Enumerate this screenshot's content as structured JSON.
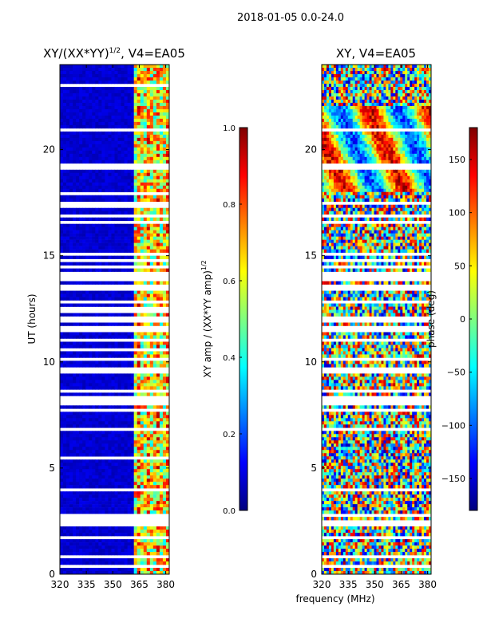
{
  "suptitle": "2018-01-05 0.0-24.0",
  "xlabel_shared": "frequency (MHz)",
  "chart_data": [
    {
      "type": "heatmap",
      "title": "XY/(XX*YY)",
      "title_superscript": "1/2",
      "title_suffix": ", V4=EA05",
      "ylabel": "UT (hours)",
      "xlim": [
        320,
        382
      ],
      "ylim": [
        0,
        24
      ],
      "xticks": [
        320,
        335,
        350,
        365,
        380
      ],
      "yticks": [
        0,
        5,
        10,
        15,
        20
      ],
      "colorbar": {
        "label": "XY amp / (XX*YY amp)",
        "label_superscript": "1/2",
        "range": [
          0.0,
          1.0
        ],
        "ticks": [
          "0.0",
          "0.2",
          "0.4",
          "0.6",
          "0.8",
          "1.0"
        ],
        "colormap": "jet"
      },
      "data_description": "Normalized XY amplitude vs frequency and UT; 320-362 MHz mostly low (~0.05-0.1), 362-382 MHz high (0.4-0.9) with vertical channel structure; many horizontal flagged (white) rows, dense gap around 7.5-14 h."
    },
    {
      "type": "heatmap",
      "title": "XY, V4=EA05",
      "ylabel": "",
      "xlim": [
        320,
        382
      ],
      "ylim": [
        0,
        24
      ],
      "xticks": [
        320,
        335,
        350,
        365,
        380
      ],
      "yticks": [
        0,
        5,
        10,
        15,
        20
      ],
      "colorbar": {
        "label": "phase (deg)",
        "range": [
          -180,
          180
        ],
        "ticks": [
          "150",
          "100",
          "50",
          "0",
          "−50",
          "−100",
          "−150"
        ],
        "colormap": "jet"
      },
      "data_description": "XY phase vs frequency and UT; noisy phase with coherent bands near 18-22 h, widespread flagged rows."
    }
  ]
}
